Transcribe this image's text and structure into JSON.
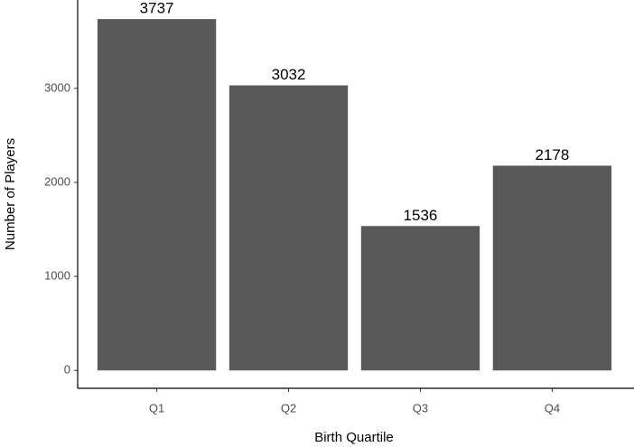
{
  "chart_data": {
    "type": "bar",
    "x_label": "Birth Quartile",
    "y_label": "Number of Players",
    "categories": [
      "Q1",
      "Q2",
      "Q3",
      "Q4"
    ],
    "values": [
      3737,
      3032,
      1536,
      2178
    ],
    "color": "#595959",
    "ylim": [
      -190,
      3940
    ],
    "yticks": [
      0,
      1000,
      2000,
      3000
    ],
    "grid": false,
    "value_labels_shown": true
  }
}
